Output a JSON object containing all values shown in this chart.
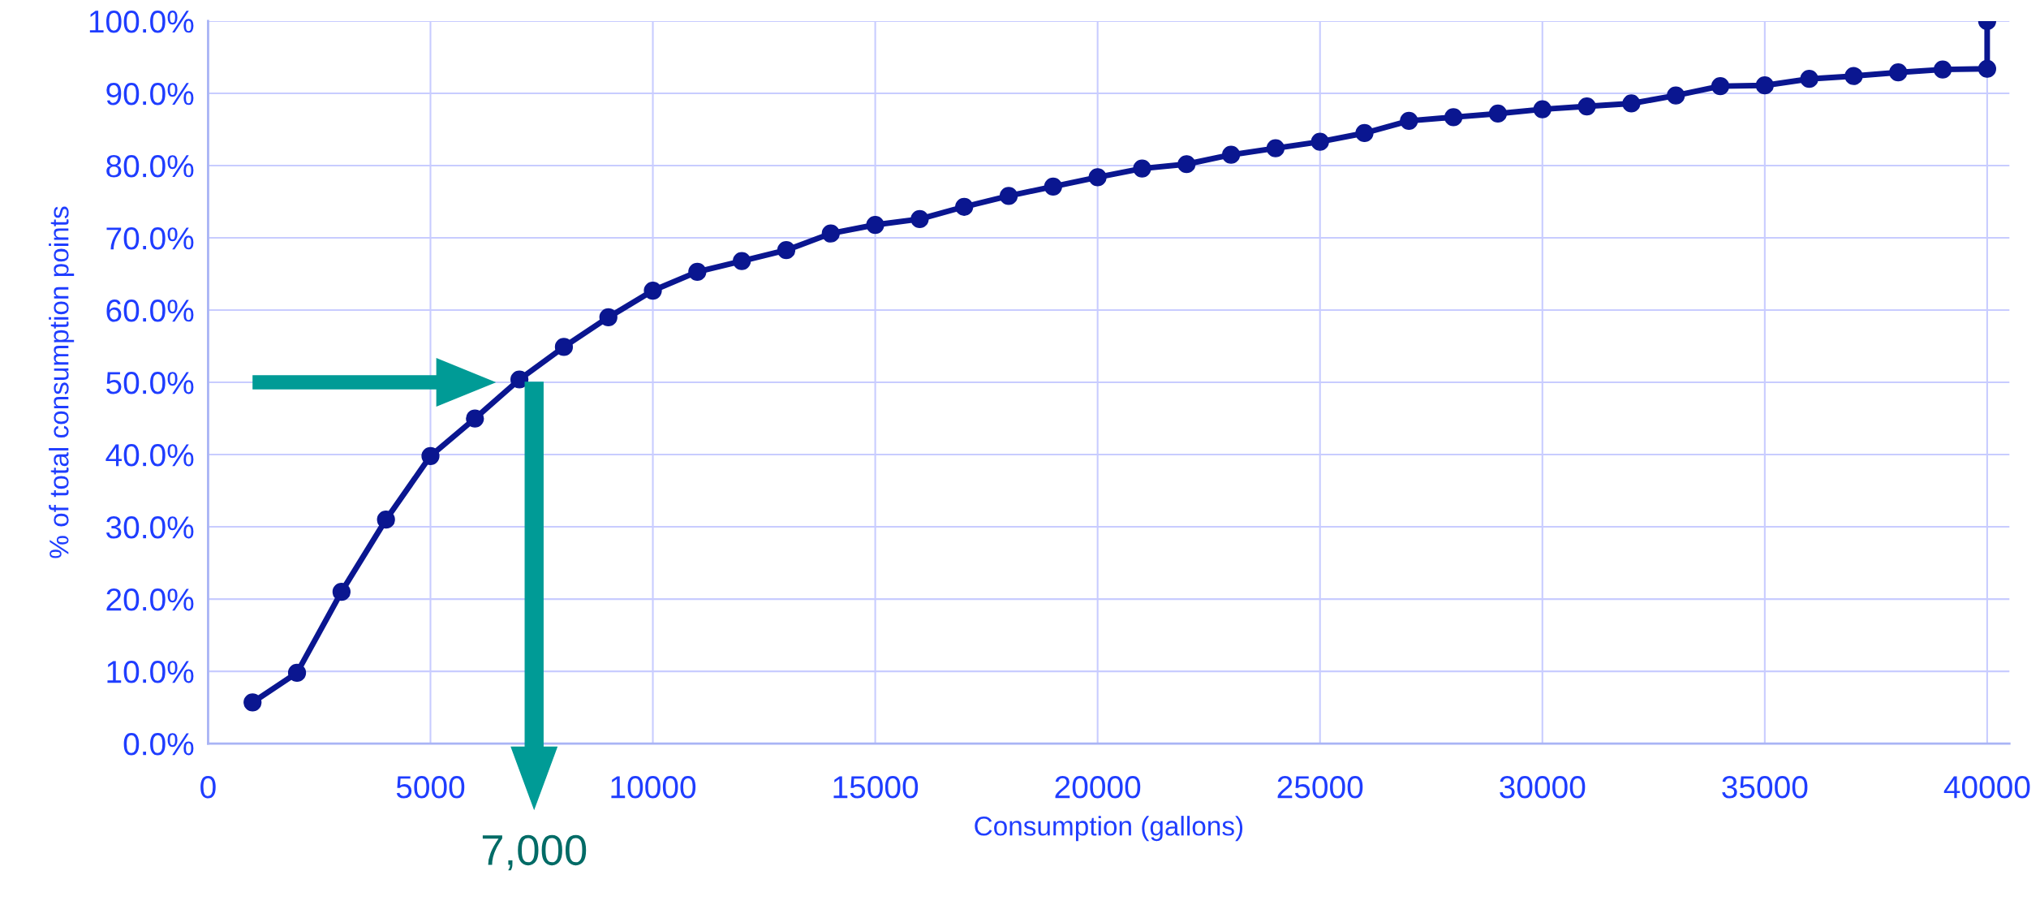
{
  "chart_data": {
    "type": "line",
    "xlabel": "Consumption (gallons)",
    "ylabel": "% of total consumption points",
    "x": [
      1000,
      2000,
      3000,
      4000,
      5000,
      6000,
      7000,
      8000,
      9000,
      10000,
      11000,
      12000,
      13000,
      14000,
      15000,
      16000,
      17000,
      18000,
      19000,
      20000,
      21000,
      22000,
      23000,
      24000,
      25000,
      26000,
      27000,
      28000,
      29000,
      30000,
      31000,
      32000,
      33000,
      34000,
      35000,
      36000,
      37000,
      38000,
      39000,
      40000,
      40000
    ],
    "series": [
      {
        "color": "#0a1690",
        "values": [
          5.7,
          9.8,
          21.0,
          31.0,
          39.8,
          45.0,
          50.4,
          54.9,
          59.0,
          62.7,
          65.3,
          66.8,
          68.3,
          70.6,
          71.8,
          72.6,
          74.3,
          75.8,
          77.1,
          78.4,
          79.6,
          80.2,
          81.5,
          82.4,
          83.3,
          84.5,
          86.2,
          86.7,
          87.2,
          87.8,
          88.2,
          88.6,
          89.7,
          91.0,
          91.1,
          92.0,
          92.4,
          92.9,
          93.3,
          93.4,
          100.0
        ]
      }
    ],
    "xlim": [
      0,
      40500
    ],
    "xticks": [
      0,
      5000,
      10000,
      15000,
      20000,
      25000,
      30000,
      35000,
      40000
    ],
    "ylim": [
      0,
      100
    ],
    "yticks": [
      {
        "value": 0,
        "label": "0.0%"
      },
      {
        "value": 10,
        "label": "10.0%"
      },
      {
        "value": 20,
        "label": "20.0%"
      },
      {
        "value": 30,
        "label": "30.0%"
      },
      {
        "value": 40,
        "label": "40.0%"
      },
      {
        "value": 50,
        "label": "50.0%"
      },
      {
        "value": 60,
        "label": "60.0%"
      },
      {
        "value": 70,
        "label": "70.0%"
      },
      {
        "value": 80,
        "label": "80.0%"
      },
      {
        "value": 90,
        "label": "90.0%"
      },
      {
        "value": 100,
        "label": "100.0%"
      }
    ],
    "grid": true,
    "marker": "circle",
    "line_style": "solid",
    "annotations": [
      "7,000"
    ]
  }
}
